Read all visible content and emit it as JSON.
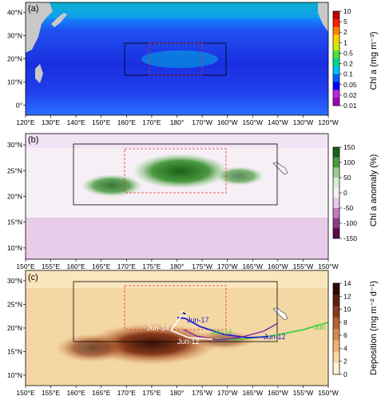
{
  "chart_data": [
    {
      "type": "heatmap",
      "panel_label": "(a)",
      "x_ticks": [
        "120°E",
        "130°E",
        "140°E",
        "150°E",
        "160°E",
        "170°E",
        "180°",
        "170°W",
        "160°W",
        "150°W",
        "140°W",
        "130°W",
        "120°W"
      ],
      "y_ticks": [
        "0°",
        "10°N",
        "20°N",
        "30°N",
        "40°N"
      ],
      "colorbar": {
        "label": "Chl a (mg m⁻³)",
        "ticks": [
          "10",
          "5",
          "2",
          "1",
          "0.5",
          "0.2",
          "0.1",
          "0.05",
          "0.02",
          "0.01"
        ],
        "colors": [
          "#a000c0",
          "#c020e0",
          "#0000ff",
          "#0060ff",
          "#00c0ff",
          "#00d890",
          "#50e040",
          "#c8f000",
          "#ffd000",
          "#ff8000",
          "#ff2000",
          "#c00000"
        ]
      },
      "boxes": [
        "black solid",
        "red dashed"
      ]
    },
    {
      "type": "heatmap",
      "panel_label": "(b)",
      "x_ticks": [
        "150°E",
        "155°E",
        "160°E",
        "165°E",
        "170°E",
        "175°E",
        "180°",
        "175°W",
        "170°W",
        "165°W",
        "160°W",
        "155°W",
        "150°W"
      ],
      "y_ticks": [
        "10°N",
        "15°N",
        "20°N",
        "25°N",
        "30°N"
      ],
      "colorbar": {
        "label": "Chl a anomaly (%)",
        "ticks": [
          "150",
          "100",
          "50",
          "0",
          "-50",
          "-100",
          "-150"
        ],
        "colors": [
          "#5b0a4b",
          "#8b3a8b",
          "#c07ac0",
          "#e8c8e8",
          "#f6f0f6",
          "#d8ecd4",
          "#9ccc90",
          "#4a9a40",
          "#1a6018"
        ]
      },
      "boxes": [
        "black solid",
        "red dashed"
      ]
    },
    {
      "type": "heatmap",
      "panel_label": "(c)",
      "x_ticks": [
        "150°E",
        "155°E",
        "160°E",
        "165°E",
        "170°E",
        "175°E",
        "180°",
        "175°W",
        "170°W",
        "165°W",
        "160°W",
        "155°W",
        "150°W"
      ],
      "y_ticks": [
        "10°N",
        "15°N",
        "20°N",
        "25°N",
        "30°N"
      ],
      "colorbar": {
        "label": "Deposition (mg m⁻² d⁻¹)",
        "ticks": [
          "14",
          "12",
          "10",
          "8",
          "6",
          "4",
          "2",
          "0"
        ],
        "colors": [
          "#fff4d0",
          "#f8d8a0",
          "#eeb070",
          "#d88848",
          "#b86030",
          "#8a3a1c",
          "#5a1e0e",
          "#2a0a04"
        ]
      },
      "boxes": [
        "black solid",
        "red dashed"
      ],
      "trajectory_labels": [
        "Jun-17",
        "Jun-14",
        "Jun-14",
        "Jun-12",
        "Jun-12",
        "Jun"
      ]
    }
  ]
}
